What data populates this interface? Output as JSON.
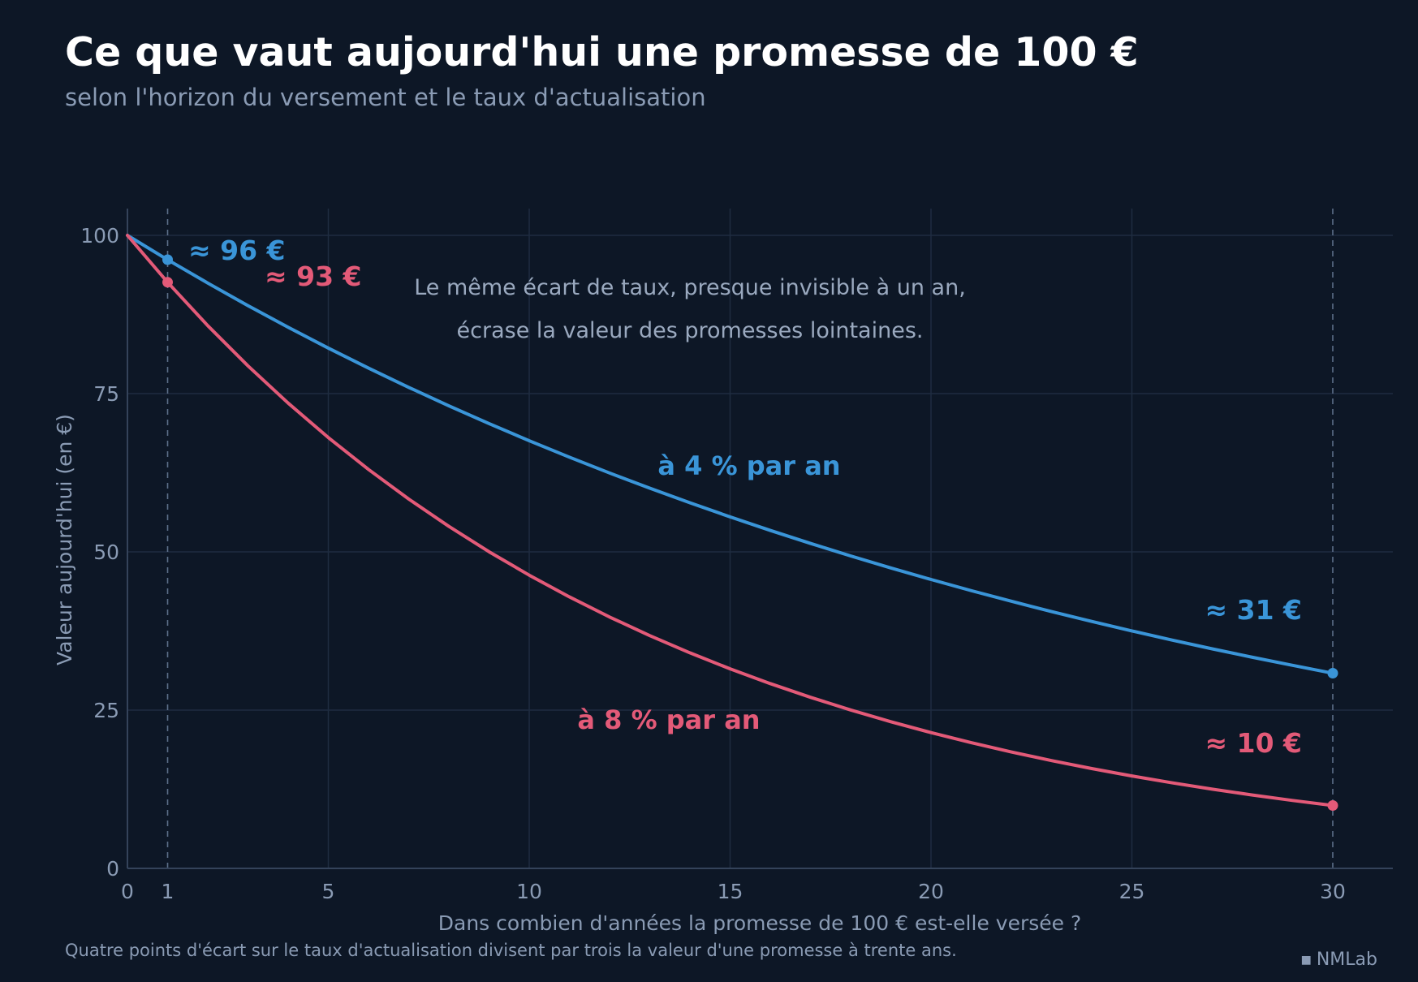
{
  "title": "Ce que vaut aujourd'hui une promesse de 100 €",
  "subtitle": "selon l'horizon du versement et le taux d'actualisation",
  "footer": "Quatre points d'écart sur le taux d'actualisation divisent par trois la valeur d'une promesse à trente ans.",
  "credit": "NMLab",
  "credit_icon": "square-mark-icon",
  "chart_data": {
    "type": "line",
    "xlabel": "Dans combien d'années la promesse de 100 € est-elle versée ?",
    "ylabel": "Valeur aujourd'hui (en €)",
    "xlim": [
      0,
      31.5
    ],
    "ylim": [
      0,
      105
    ],
    "xticks": [
      0,
      1,
      5,
      10,
      15,
      20,
      25,
      30
    ],
    "yticks": [
      0,
      25,
      50,
      75,
      100
    ],
    "grid": true,
    "reference_lines_x": [
      1,
      30
    ],
    "series": [
      {
        "key": "r4",
        "name": "à 4 % par an",
        "rate": 0.04,
        "color": "#3a95d8",
        "x": [
          0,
          1,
          2,
          3,
          4,
          5,
          6,
          7,
          8,
          9,
          10,
          11,
          12,
          13,
          14,
          15,
          16,
          17,
          18,
          19,
          20,
          21,
          22,
          23,
          24,
          25,
          26,
          27,
          28,
          29,
          30
        ],
        "y": [
          100.0,
          96.15,
          92.46,
          88.9,
          85.48,
          82.19,
          79.03,
          75.99,
          73.07,
          70.26,
          67.56,
          64.96,
          62.46,
          60.06,
          57.75,
          55.53,
          53.39,
          51.34,
          49.36,
          47.46,
          45.64,
          43.88,
          42.2,
          40.57,
          39.01,
          37.51,
          36.07,
          34.68,
          33.35,
          32.07,
          30.83
        ],
        "markers": [
          {
            "x": 1,
            "y": 96.15,
            "label": "≈ 96 €"
          },
          {
            "x": 30,
            "y": 30.83,
            "label": "≈ 31 €"
          }
        ]
      },
      {
        "key": "r8",
        "name": "à 8 % par an",
        "rate": 0.08,
        "color": "#e35a78",
        "x": [
          0,
          1,
          2,
          3,
          4,
          5,
          6,
          7,
          8,
          9,
          10,
          11,
          12,
          13,
          14,
          15,
          16,
          17,
          18,
          19,
          20,
          21,
          22,
          23,
          24,
          25,
          26,
          27,
          28,
          29,
          30
        ],
        "y": [
          100.0,
          92.59,
          85.73,
          79.38,
          73.5,
          68.06,
          63.02,
          58.35,
          54.03,
          50.02,
          46.32,
          42.89,
          39.71,
          36.77,
          34.05,
          31.52,
          29.19,
          27.03,
          25.02,
          23.17,
          21.45,
          19.87,
          18.39,
          17.03,
          15.77,
          14.6,
          13.52,
          12.52,
          11.59,
          10.73,
          9.94
        ],
        "markers": [
          {
            "x": 1,
            "y": 92.59,
            "label": "≈ 93 €"
          },
          {
            "x": 30,
            "y": 9.94,
            "label": "≈ 10 €"
          }
        ]
      }
    ],
    "annotations": [
      "Le même écart de taux, presque invisible à un an,",
      "écrase la valeur des promesses lointaines."
    ]
  },
  "colors": {
    "background": "#0d1726",
    "grid": "#1f2c40",
    "axis": "#34435a",
    "tick_text": "#8a9bb4",
    "annotation_text": "#9aa9bf"
  }
}
